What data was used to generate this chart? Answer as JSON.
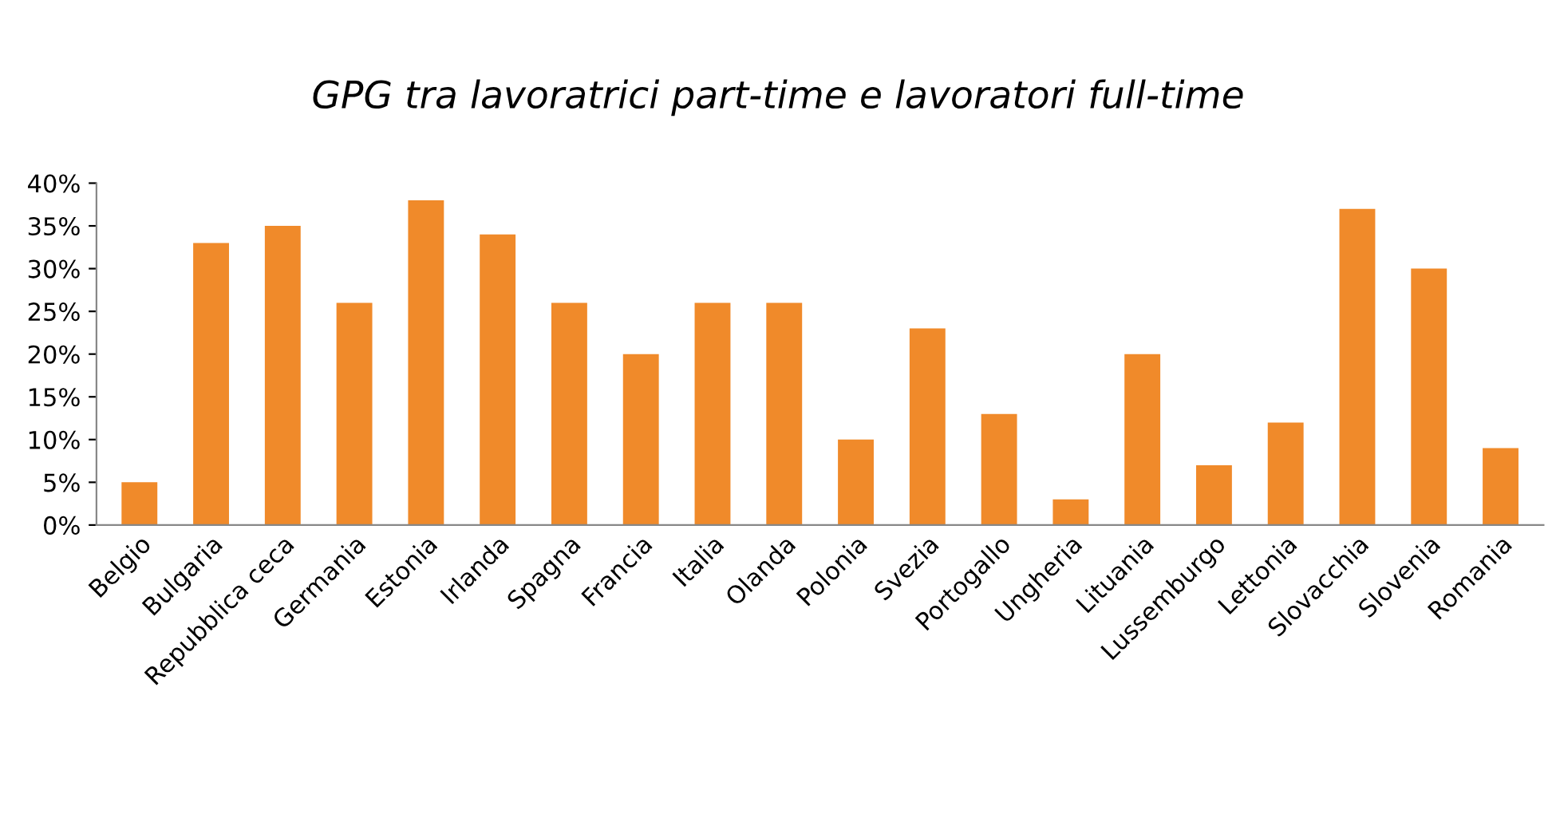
{
  "chart_data": {
    "type": "bar",
    "title": "GPG tra lavoratrici part-time e lavoratori full-time",
    "categories": [
      "Belgio",
      "Bulgaria",
      "Repubblica ceca",
      "Germania",
      "Estonia",
      "Irlanda",
      "Spagna",
      "Francia",
      "Italia",
      "Olanda",
      "Polonia",
      "Svezia",
      "Portogallo",
      "Ungheria",
      "Lituania",
      "Lussemburgo",
      "Lettonia",
      "Slovacchia",
      "Slovenia",
      "Romania"
    ],
    "values": [
      5,
      33,
      35,
      26,
      38,
      34,
      26,
      20,
      26,
      26,
      10,
      23,
      13,
      3,
      20,
      7,
      12,
      37,
      30,
      9
    ],
    "color": "#f08a2a",
    "ylim": [
      0,
      40
    ],
    "yticks": [
      {
        "value": 0,
        "label": "0%"
      },
      {
        "value": 5,
        "label": "5%"
      },
      {
        "value": 10,
        "label": "10%"
      },
      {
        "value": 15,
        "label": "15%"
      },
      {
        "value": 20,
        "label": "20%"
      },
      {
        "value": 25,
        "label": "25%"
      },
      {
        "value": 30,
        "label": "30%"
      },
      {
        "value": 35,
        "label": "35%"
      },
      {
        "value": 40,
        "label": "40%"
      }
    ],
    "grid": false,
    "legend": false
  }
}
